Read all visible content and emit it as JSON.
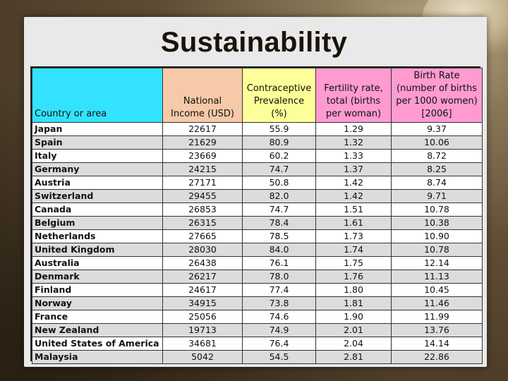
{
  "slide": {
    "title": "Sustainability"
  },
  "table": {
    "headers": [
      "Country or area",
      "National Income (USD)",
      "Contraceptive Prevalence (%)",
      "Fertility rate, total (births per woman)",
      "Birth Rate (number of births per 1000 women) [2006]"
    ],
    "rows": [
      [
        "Japan",
        "22617",
        "55.9",
        "1.29",
        "9.37"
      ],
      [
        "Spain",
        "21629",
        "80.9",
        "1.32",
        "10.06"
      ],
      [
        "Italy",
        "23669",
        "60.2",
        "1.33",
        "8.72"
      ],
      [
        "Germany",
        "24215",
        "74.7",
        "1.37",
        "8.25"
      ],
      [
        "Austria",
        "27171",
        "50.8",
        "1.42",
        "8.74"
      ],
      [
        "Switzerland",
        "29455",
        "82.0",
        "1.42",
        "9.71"
      ],
      [
        "Canada",
        "26853",
        "74.7",
        "1.51",
        "10.78"
      ],
      [
        "Belgium",
        "26315",
        "78.4",
        "1.61",
        "10.38"
      ],
      [
        "Netherlands",
        "27665",
        "78.5",
        "1.73",
        "10.90"
      ],
      [
        "United Kingdom",
        "28030",
        "84.0",
        "1.74",
        "10.78"
      ],
      [
        "Australia",
        "26438",
        "76.1",
        "1.75",
        "12.14"
      ],
      [
        "Denmark",
        "26217",
        "78.0",
        "1.76",
        "11.13"
      ],
      [
        "Finland",
        "24617",
        "77.4",
        "1.80",
        "10.45"
      ],
      [
        "Norway",
        "34915",
        "73.8",
        "1.81",
        "11.46"
      ],
      [
        "France",
        "25056",
        "74.6",
        "1.90",
        "11.99"
      ],
      [
        "New Zealand",
        "19713",
        "74.9",
        "2.01",
        "13.76"
      ],
      [
        "United States of America",
        "34681",
        "76.4",
        "2.04",
        "14.14"
      ],
      [
        "Malaysia",
        "5042",
        "54.5",
        "2.81",
        "22.86"
      ]
    ]
  },
  "colors": {
    "header_country": "#33e2ff",
    "header_income": "#f6c9a8",
    "header_contraceptive": "#ffff99",
    "header_fertility": "#ff9bd0",
    "header_birthrate": "#ff9bd0"
  }
}
